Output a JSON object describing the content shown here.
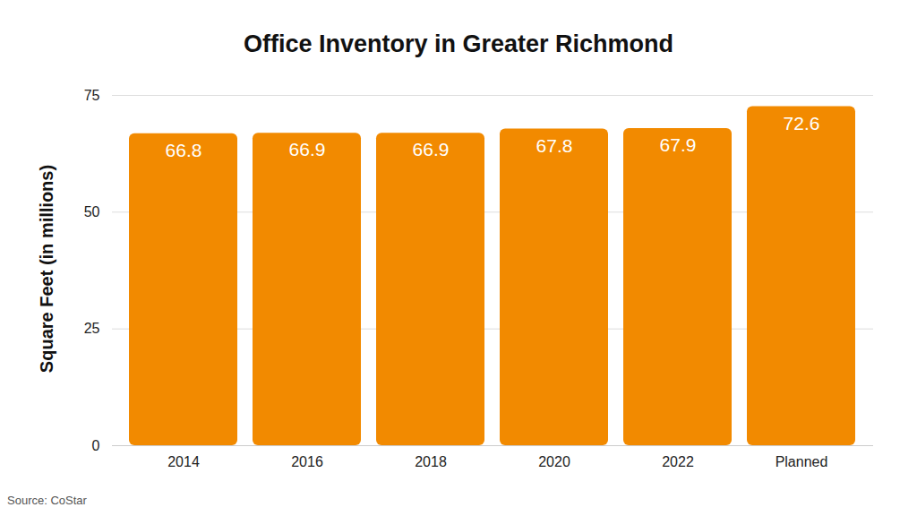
{
  "chart_data": {
    "type": "bar",
    "title": "Office Inventory in Greater Richmond",
    "y_label": "Square Feet (in millions)",
    "caption": "Source: CoStar",
    "categories": [
      "2014",
      "2016",
      "2018",
      "2020",
      "2022",
      "Planned"
    ],
    "values": [
      66.8,
      66.9,
      66.9,
      67.8,
      67.9,
      72.6
    ],
    "color": "#f28a00",
    "ylim": [
      0,
      75
    ],
    "yticks": [
      0,
      25,
      50,
      75
    ],
    "grid": true,
    "data_labels": true
  }
}
